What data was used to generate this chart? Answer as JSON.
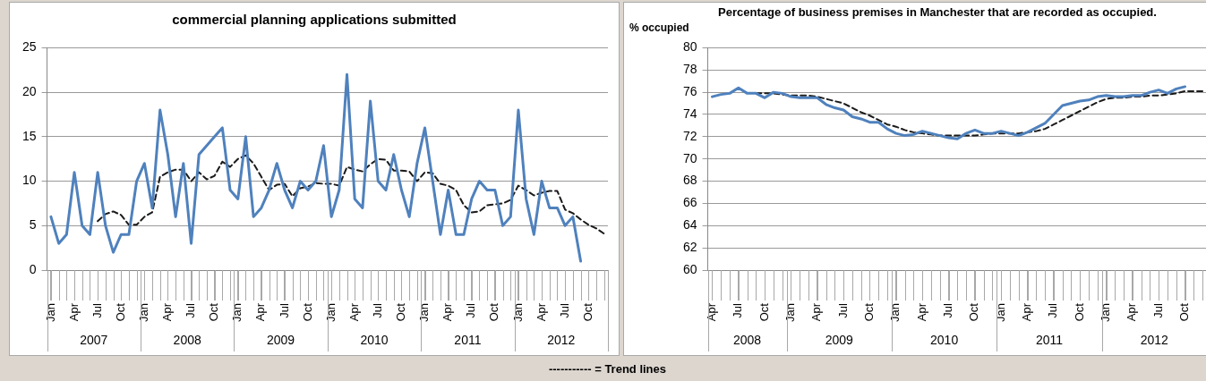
{
  "chart_data": [
    {
      "type": "line",
      "title": "commercial planning applications submitted",
      "x": [
        "2007-01",
        "2007-02",
        "2007-03",
        "2007-04",
        "2007-05",
        "2007-06",
        "2007-07",
        "2007-08",
        "2007-09",
        "2007-10",
        "2007-11",
        "2007-12",
        "2008-01",
        "2008-02",
        "2008-03",
        "2008-04",
        "2008-05",
        "2008-06",
        "2008-07",
        "2008-08",
        "2008-09",
        "2008-10",
        "2008-11",
        "2008-12",
        "2009-01",
        "2009-02",
        "2009-03",
        "2009-04",
        "2009-05",
        "2009-06",
        "2009-07",
        "2009-08",
        "2009-09",
        "2009-10",
        "2009-11",
        "2009-12",
        "2010-01",
        "2010-02",
        "2010-03",
        "2010-04",
        "2010-05",
        "2010-06",
        "2010-07",
        "2010-08",
        "2010-09",
        "2010-10",
        "2010-11",
        "2010-12",
        "2011-01",
        "2011-02",
        "2011-03",
        "2011-04",
        "2011-05",
        "2011-06",
        "2011-07",
        "2011-08",
        "2011-09",
        "2011-10",
        "2011-11",
        "2011-12",
        "2012-01",
        "2012-02",
        "2012-03",
        "2012-04",
        "2012-05",
        "2012-06",
        "2012-07",
        "2012-08",
        "2012-09",
        "2012-10",
        "2012-11",
        "2012-12"
      ],
      "series": [
        {
          "color": "#4f81bd",
          "values": [
            6,
            3,
            4,
            11,
            5,
            4,
            11,
            5,
            2,
            4,
            4,
            10,
            12,
            7,
            18,
            13,
            6,
            12,
            3,
            13,
            14,
            15,
            16,
            9,
            8,
            15,
            6,
            7,
            9,
            12,
            9,
            7,
            10,
            9,
            10,
            14,
            6,
            9,
            22,
            8,
            7,
            19,
            10,
            9,
            13,
            9,
            6,
            12,
            16,
            10,
            4,
            9,
            4,
            4,
            8,
            10,
            9,
            9,
            5,
            6,
            18,
            8,
            4,
            10,
            7,
            7,
            5,
            6,
            1,
            null,
            null,
            null
          ]
        },
        {
          "color": "#1a1a1a",
          "line_style": "dashed",
          "values": [
            null,
            null,
            null,
            null,
            null,
            null,
            5.5,
            6.3,
            6.6,
            6.2,
            5.1,
            5.1,
            6.0,
            6.5,
            10.5,
            11.0,
            11.3,
            11.3,
            10.0,
            11.0,
            10.2,
            10.6,
            12.2,
            11.6,
            12.5,
            12.9,
            12.0,
            10.5,
            9.0,
            9.6,
            9.7,
            8.3,
            9.2,
            9.4,
            9.8,
            9.7,
            9.7,
            9.5,
            11.6,
            11.3,
            11.1,
            11.9,
            12.5,
            12.4,
            11.2,
            11.2,
            11.1,
            10.0,
            11.0,
            10.9,
            9.7,
            9.5,
            9.0,
            7.3,
            6.5,
            6.6,
            7.3,
            7.4,
            7.5,
            7.9,
            9.5,
            9.0,
            8.4,
            8.7,
            8.9,
            8.9,
            6.8,
            6.4,
            5.7,
            5.1,
            4.7,
            4.1
          ]
        }
      ],
      "xlim": [
        "2006-12-16",
        "2012-12-16"
      ],
      "xticks": [
        {
          "value": "2007-01",
          "label": "Jan"
        },
        {
          "value": "2007-04",
          "label": "Apr"
        },
        {
          "value": "2007-07",
          "label": "Jul"
        },
        {
          "value": "2007-10",
          "label": "Oct"
        },
        {
          "value": "2008-01",
          "label": "Jan"
        },
        {
          "value": "2008-04",
          "label": "Apr"
        },
        {
          "value": "2008-07",
          "label": "Jul"
        },
        {
          "value": "2008-10",
          "label": "Oct"
        },
        {
          "value": "2009-01",
          "label": "Jan"
        },
        {
          "value": "2009-04",
          "label": "Apr"
        },
        {
          "value": "2009-07",
          "label": "Jul"
        },
        {
          "value": "2009-10",
          "label": "Oct"
        },
        {
          "value": "2010-01",
          "label": "Jan"
        },
        {
          "value": "2010-04",
          "label": "Apr"
        },
        {
          "value": "2010-07",
          "label": "Jul"
        },
        {
          "value": "2010-10",
          "label": "Oct"
        },
        {
          "value": "2011-01",
          "label": "Jan"
        },
        {
          "value": "2011-04",
          "label": "Apr"
        },
        {
          "value": "2011-07",
          "label": "Jul"
        },
        {
          "value": "2011-10",
          "label": "Oct"
        },
        {
          "value": "2012-01",
          "label": "Jan"
        },
        {
          "value": "2012-04",
          "label": "Apr"
        },
        {
          "value": "2012-07",
          "label": "Jul"
        },
        {
          "value": "2012-10",
          "label": "Oct"
        }
      ],
      "ylim": [
        0,
        25
      ],
      "yticks": [
        0,
        5,
        10,
        15,
        20,
        25
      ],
      "grid": "y",
      "legend": false,
      "annotations": [
        "2007",
        "2008",
        "2009",
        "2010",
        "2011",
        "2012",
        "----------- = Trend lines"
      ]
    },
    {
      "type": "line",
      "title": "Percentage of business premises in Manchester that are recorded as occupied.",
      "ylabel": "% occupied",
      "x": [
        "2008-04",
        "2008-05",
        "2008-06",
        "2008-07",
        "2008-08",
        "2008-09",
        "2008-10",
        "2008-11",
        "2008-12",
        "2009-01",
        "2009-02",
        "2009-03",
        "2009-04",
        "2009-05",
        "2009-06",
        "2009-07",
        "2009-08",
        "2009-09",
        "2009-10",
        "2009-11",
        "2009-12",
        "2010-01",
        "2010-02",
        "2010-03",
        "2010-04",
        "2010-05",
        "2010-06",
        "2010-07",
        "2010-08",
        "2010-09",
        "2010-10",
        "2010-11",
        "2010-12",
        "2011-01",
        "2011-02",
        "2011-03",
        "2011-04",
        "2011-05",
        "2011-06",
        "2011-07",
        "2011-08",
        "2011-09",
        "2011-10",
        "2011-11",
        "2011-12",
        "2012-01",
        "2012-02",
        "2012-03",
        "2012-04",
        "2012-05",
        "2012-06",
        "2012-07",
        "2012-08",
        "2012-09",
        "2012-10",
        "2012-11",
        "2012-12"
      ],
      "series": [
        {
          "color": "#4f81bd",
          "values": [
            75.6,
            75.8,
            75.9,
            76.4,
            75.9,
            75.9,
            75.5,
            76.0,
            75.9,
            75.6,
            75.5,
            75.5,
            75.5,
            74.9,
            74.6,
            74.4,
            73.8,
            73.6,
            73.3,
            73.3,
            72.7,
            72.3,
            72.1,
            72.2,
            72.5,
            72.3,
            72.1,
            71.9,
            71.8,
            72.3,
            72.6,
            72.3,
            72.3,
            72.5,
            72.3,
            72.1,
            72.4,
            72.8,
            73.2,
            74.0,
            74.8,
            75.0,
            75.2,
            75.3,
            75.6,
            75.7,
            75.6,
            75.6,
            75.7,
            75.7,
            76.0,
            76.2,
            75.9,
            76.3,
            76.5,
            null,
            null
          ]
        },
        {
          "color": "#1a1a1a",
          "line_style": "dashed",
          "values": [
            null,
            null,
            null,
            null,
            null,
            75.9,
            75.9,
            75.9,
            75.8,
            75.7,
            75.7,
            75.7,
            75.6,
            75.4,
            75.2,
            75.0,
            74.6,
            74.2,
            73.9,
            73.5,
            73.1,
            72.9,
            72.6,
            72.4,
            72.3,
            72.2,
            72.1,
            72.1,
            72.1,
            72.1,
            72.1,
            72.2,
            72.3,
            72.3,
            72.3,
            72.3,
            72.4,
            72.5,
            72.7,
            73.1,
            73.5,
            73.9,
            74.3,
            74.7,
            75.1,
            75.4,
            75.5,
            75.5,
            75.6,
            75.6,
            75.7,
            75.7,
            75.8,
            75.9,
            76.1,
            76.1,
            76.1
          ]
        }
      ],
      "xlim": [
        "2008-03-16",
        "2012-12-16"
      ],
      "xticks": [
        {
          "value": "2008-04",
          "label": "Apr"
        },
        {
          "value": "2008-07",
          "label": "Jul"
        },
        {
          "value": "2008-10",
          "label": "Oct"
        },
        {
          "value": "2009-01",
          "label": "Jan"
        },
        {
          "value": "2009-04",
          "label": "Apr"
        },
        {
          "value": "2009-07",
          "label": "Jul"
        },
        {
          "value": "2009-10",
          "label": "Oct"
        },
        {
          "value": "2010-01",
          "label": "Jan"
        },
        {
          "value": "2010-04",
          "label": "Apr"
        },
        {
          "value": "2010-07",
          "label": "Jul"
        },
        {
          "value": "2010-10",
          "label": "Oct"
        },
        {
          "value": "2011-01",
          "label": "Jan"
        },
        {
          "value": "2011-04",
          "label": "Apr"
        },
        {
          "value": "2011-07",
          "label": "Jul"
        },
        {
          "value": "2011-10",
          "label": "Oct"
        },
        {
          "value": "2012-01",
          "label": "Jan"
        },
        {
          "value": "2012-04",
          "label": "Apr"
        },
        {
          "value": "2012-07",
          "label": "Jul"
        },
        {
          "value": "2012-10",
          "label": "Oct"
        }
      ],
      "ylim": [
        60,
        80
      ],
      "yticks": [
        60,
        62,
        64,
        66,
        68,
        70,
        72,
        74,
        76,
        78,
        80
      ],
      "grid": "y",
      "legend": false,
      "annotations": [
        "2008",
        "2009",
        "2010",
        "2011",
        "2012"
      ]
    }
  ]
}
